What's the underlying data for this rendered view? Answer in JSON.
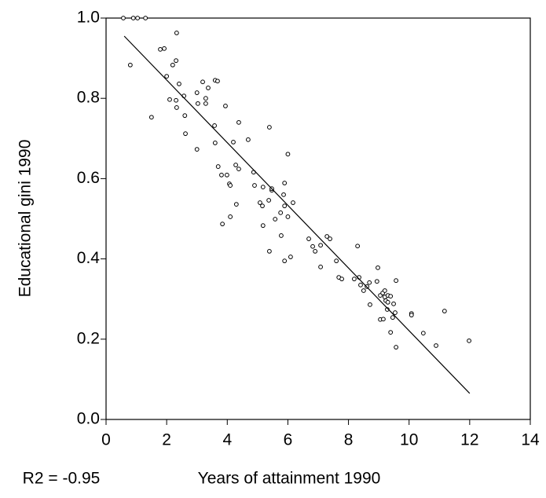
{
  "chart_data": {
    "type": "scatter",
    "x_label": "Years of attainment 1990",
    "y_label": "Educational gini 1990",
    "annotation": "R2 = -0.95",
    "xlim": [
      0,
      14
    ],
    "xticks": [
      0,
      2,
      4,
      6,
      8,
      10,
      12,
      14
    ],
    "ylim": [
      0,
      1
    ],
    "yticks": [
      {
        "value": 0,
        "label": "0.0"
      },
      0.2,
      0.4,
      0.6,
      0.8,
      {
        "value": 1,
        "label": "1.0"
      }
    ],
    "color": "#000000",
    "x": [
      0.57,
      0.9,
      1.04,
      1.3,
      0.8,
      1.5,
      1.79,
      1.92,
      2.0,
      2.1,
      2.2,
      2.31,
      2.33,
      2.31,
      2.41,
      2.33,
      2.57,
      2.6,
      2.62,
      3.0,
      3.0,
      3.03,
      3.19,
      3.29,
      3.29,
      3.37,
      3.6,
      3.68,
      3.58,
      3.6,
      3.7,
      3.81,
      3.84,
      3.94,
      3.99,
      4.07,
      4.1,
      4.1,
      4.2,
      4.28,
      4.3,
      4.38,
      4.38,
      4.69,
      4.87,
      4.9,
      5.08,
      5.16,
      5.18,
      5.18,
      5.37,
      5.39,
      5.39,
      5.47,
      5.47,
      5.58,
      5.76,
      5.78,
      5.89,
      5.86,
      5.89,
      5.89,
      6.0,
      6.0,
      6.09,
      6.17,
      6.69,
      6.82,
      6.9,
      7.08,
      7.08,
      7.29,
      7.39,
      7.6,
      7.68,
      7.78,
      8.3,
      8.19,
      8.35,
      8.4,
      8.5,
      8.61,
      8.69,
      8.71,
      8.94,
      8.97,
      9.05,
      9.05,
      9.13,
      9.15,
      9.2,
      9.2,
      9.23,
      9.3,
      9.28,
      9.3,
      9.39,
      9.39,
      9.46,
      9.49,
      9.57,
      9.54,
      9.57,
      10.08,
      10.08,
      10.47,
      10.89,
      11.17,
      11.98
    ],
    "values": [
      1.0,
      1.0,
      1.0,
      1.0,
      0.883,
      0.753,
      0.922,
      0.924,
      0.855,
      0.797,
      0.883,
      0.894,
      0.963,
      0.795,
      0.836,
      0.777,
      0.806,
      0.757,
      0.712,
      0.673,
      0.814,
      0.787,
      0.841,
      0.8,
      0.787,
      0.826,
      0.845,
      0.843,
      0.732,
      0.689,
      0.63,
      0.609,
      0.487,
      0.781,
      0.609,
      0.587,
      0.583,
      0.505,
      0.691,
      0.634,
      0.536,
      0.624,
      0.74,
      0.697,
      0.616,
      0.583,
      0.54,
      0.532,
      0.579,
      0.483,
      0.546,
      0.728,
      0.419,
      0.571,
      0.575,
      0.499,
      0.515,
      0.458,
      0.589,
      0.56,
      0.395,
      0.532,
      0.505,
      0.661,
      0.405,
      0.54,
      0.45,
      0.431,
      0.419,
      0.434,
      0.38,
      0.456,
      0.45,
      0.395,
      0.354,
      0.35,
      0.432,
      0.35,
      0.354,
      0.335,
      0.321,
      0.331,
      0.341,
      0.286,
      0.344,
      0.378,
      0.309,
      0.249,
      0.315,
      0.25,
      0.321,
      0.305,
      0.296,
      0.309,
      0.274,
      0.292,
      0.307,
      0.217,
      0.254,
      0.288,
      0.346,
      0.266,
      0.18,
      0.264,
      0.26,
      0.215,
      0.184,
      0.27,
      0.196
    ],
    "fit_line": {
      "x": [
        0.6,
        12
      ],
      "values": [
        0.955,
        0.065
      ]
    }
  }
}
